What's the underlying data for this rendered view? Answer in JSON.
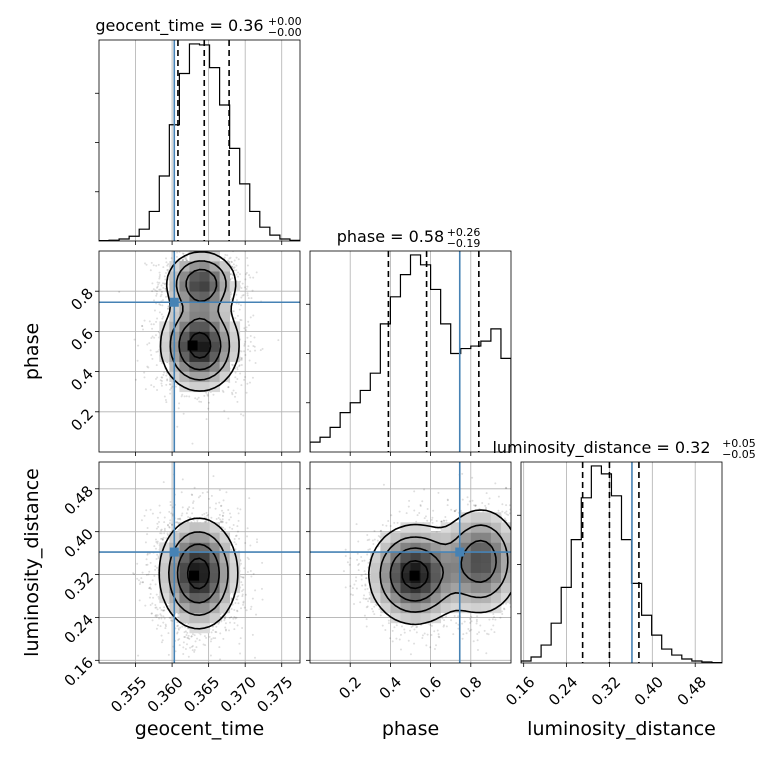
{
  "chart_data": {
    "type": "corner",
    "truth_color": "#4682b4",
    "parameters": [
      "geocent_time",
      "phase",
      "luminosity_distance"
    ],
    "axis_labels": {
      "geocent_time": "geocent_time",
      "phase": "phase",
      "luminosity_distance": "luminosity_distance"
    },
    "ranges": {
      "geocent_time": [
        0.35,
        0.3775
      ],
      "phase": [
        0.0,
        1.0
      ],
      "luminosity_distance": [
        0.155,
        0.53
      ]
    },
    "ticks": {
      "geocent_time": [
        0.355,
        0.36,
        0.365,
        0.37,
        0.375
      ],
      "phase": [
        0.2,
        0.4,
        0.6,
        0.8
      ],
      "luminosity_distance": [
        0.16,
        0.24,
        0.32,
        0.4,
        0.48
      ]
    },
    "tick_labels": {
      "geocent_time": [
        "0.355",
        "0.360",
        "0.365",
        "0.370",
        "0.375"
      ],
      "phase": [
        "0.2",
        "0.4",
        "0.6",
        "0.8"
      ],
      "luminosity_distance": [
        "0.16",
        "0.24",
        "0.32",
        "0.40",
        "0.48"
      ]
    },
    "truths": {
      "geocent_time": 0.3603,
      "phase": 0.745,
      "luminosity_distance": 0.362
    },
    "titles": [
      {
        "parameter": "geocent_time",
        "prefix": "geocent_time = 0.36",
        "sup": "+0.00",
        "sub": "−0.00"
      },
      {
        "parameter": "phase",
        "prefix": "phase = 0.58",
        "sup": "+0.26",
        "sub": "−0.19"
      },
      {
        "parameter": "luminosity_distance",
        "prefix": "luminosity_distance = 0.32",
        "sup": "+0.05",
        "sub": "−0.05"
      }
    ],
    "quantiles": {
      "geocent_time": [
        0.3608,
        0.3644,
        0.3678
      ],
      "phase": [
        0.39,
        0.58,
        0.84
      ],
      "luminosity_distance": [
        0.27,
        0.32,
        0.375
      ]
    },
    "histograms": {
      "geocent_time": {
        "edges": [
          0.35,
          0.351375,
          0.35275,
          0.354125,
          0.3555,
          0.356875,
          0.35825,
          0.359625,
          0.361,
          0.362375,
          0.36375,
          0.365125,
          0.3665,
          0.367875,
          0.36925,
          0.370625,
          0.372,
          0.373375,
          0.37475,
          0.376125,
          0.3775
        ],
        "counts": [
          2,
          4,
          10,
          24,
          60,
          150,
          330,
          590,
          850,
          1000,
          995,
          880,
          690,
          470,
          290,
          150,
          70,
          30,
          10,
          3
        ]
      },
      "phase": {
        "edges": [
          0.0,
          0.05,
          0.1,
          0.15,
          0.2,
          0.25,
          0.3,
          0.35,
          0.4,
          0.45,
          0.5,
          0.55,
          0.6,
          0.65,
          0.7,
          0.75,
          0.8,
          0.85,
          0.9,
          0.95,
          1.0
        ],
        "counts": [
          40,
          60,
          100,
          160,
          200,
          250,
          320,
          520,
          630,
          720,
          800,
          760,
          660,
          520,
          400,
          420,
          430,
          450,
          500,
          380
        ]
      },
      "luminosity_distance": {
        "edges": [
          0.155,
          0.17375,
          0.1925,
          0.21125,
          0.23,
          0.24875,
          0.2675,
          0.28625,
          0.305,
          0.32375,
          0.3425,
          0.36125,
          0.38,
          0.39875,
          0.4175,
          0.43625,
          0.455,
          0.47375,
          0.4925,
          0.51125,
          0.53
        ],
        "counts": [
          10,
          30,
          90,
          200,
          380,
          620,
          830,
          990,
          950,
          840,
          620,
          400,
          240,
          140,
          70,
          40,
          20,
          10,
          5,
          2
        ]
      }
    },
    "density_2d": [
      {
        "x": "geocent_time",
        "y": "phase",
        "components": [
          {
            "mean": [
              0.3638,
              0.53
            ],
            "sigma": [
              0.0026,
              0.11
            ],
            "weight": 0.7
          },
          {
            "mean": [
              0.364,
              0.84
            ],
            "sigma": [
              0.0024,
              0.08
            ],
            "weight": 0.55
          }
        ],
        "peak": [
          0.3628,
          0.53
        ]
      },
      {
        "x": "geocent_time",
        "y": "luminosity_distance",
        "components": [
          {
            "mean": [
              0.3636,
              0.322
            ],
            "sigma": [
              0.0026,
              0.05
            ],
            "weight": 1.0
          }
        ],
        "peak": [
          0.363,
          0.318
        ]
      },
      {
        "x": "phase",
        "y": "luminosity_distance",
        "components": [
          {
            "mean": [
              0.52,
              0.32
            ],
            "sigma": [
              0.11,
              0.045
            ],
            "weight": 0.75
          },
          {
            "mean": [
              0.85,
              0.345
            ],
            "sigma": [
              0.1,
              0.05
            ],
            "weight": 0.55
          }
        ],
        "peak": [
          0.52,
          0.318
        ]
      }
    ],
    "contour_levels": [
      0.12,
      0.3,
      0.55,
      0.85
    ],
    "grid": true,
    "legend": "none"
  }
}
